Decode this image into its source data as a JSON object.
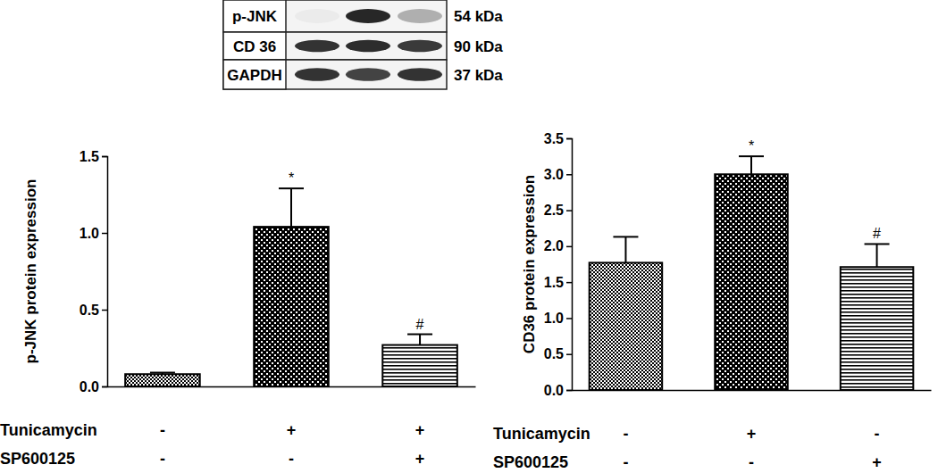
{
  "blot": {
    "rows": [
      {
        "label": "p-JNK",
        "size": "54 kDa",
        "band_intensity": [
          0.04,
          0.9,
          0.3
        ]
      },
      {
        "label": "CD 36",
        "size": "90 kDa",
        "band_intensity": [
          0.85,
          0.88,
          0.82
        ]
      },
      {
        "label": "GAPDH",
        "size": "37 kDa",
        "band_intensity": [
          0.85,
          0.78,
          0.85
        ]
      }
    ]
  },
  "chart_data": [
    {
      "type": "bar",
      "y_label": "p-JNK protein expression",
      "categories": [
        null,
        null,
        null
      ],
      "values": [
        0.08,
        1.04,
        0.27
      ],
      "errors": [
        0.01,
        0.25,
        0.07
      ],
      "color": "#000000",
      "ylim": [
        0,
        1.5
      ],
      "yticks": [
        {
          "value": 0,
          "label": "0.0"
        },
        {
          "value": 0.5,
          "label": "0.5"
        },
        {
          "value": 1,
          "label": "1.0"
        },
        {
          "value": 1.5,
          "label": "1.5"
        }
      ],
      "tick_labels": "y",
      "annotations": [
        {
          "index": 1,
          "text": "*"
        },
        {
          "index": 2,
          "text": "#"
        }
      ],
      "treatments": [
        {
          "name": "Tunicamycin",
          "signs": [
            "-",
            "+",
            "+"
          ]
        },
        {
          "name": "SP600125",
          "signs": [
            "-",
            "-",
            "+"
          ]
        }
      ]
    },
    {
      "type": "bar",
      "y_label": "CD36 protein expression",
      "categories": [
        null,
        null,
        null
      ],
      "values": [
        1.77,
        3.0,
        1.71
      ],
      "errors": [
        0.36,
        0.25,
        0.32
      ],
      "color": "#000000",
      "ylim": [
        0,
        3.5
      ],
      "yticks": [
        {
          "value": 0,
          "label": "0.0"
        },
        {
          "value": 0.5,
          "label": "0.5"
        },
        {
          "value": 1,
          "label": "1.0"
        },
        {
          "value": 1.5,
          "label": "1.5"
        },
        {
          "value": 2,
          "label": "2.0"
        },
        {
          "value": 2.5,
          "label": "2.5"
        },
        {
          "value": 3,
          "label": "3.0"
        },
        {
          "value": 3.5,
          "label": "3.5"
        }
      ],
      "tick_labels": "y",
      "annotations": [
        {
          "index": 1,
          "text": "*"
        },
        {
          "index": 2,
          "text": "#"
        }
      ],
      "treatments": [
        {
          "name": "Tunicamycin",
          "signs": [
            "-",
            "+",
            "-"
          ]
        },
        {
          "name": "SP600125",
          "signs": [
            "-",
            "-",
            "+"
          ]
        }
      ]
    }
  ]
}
